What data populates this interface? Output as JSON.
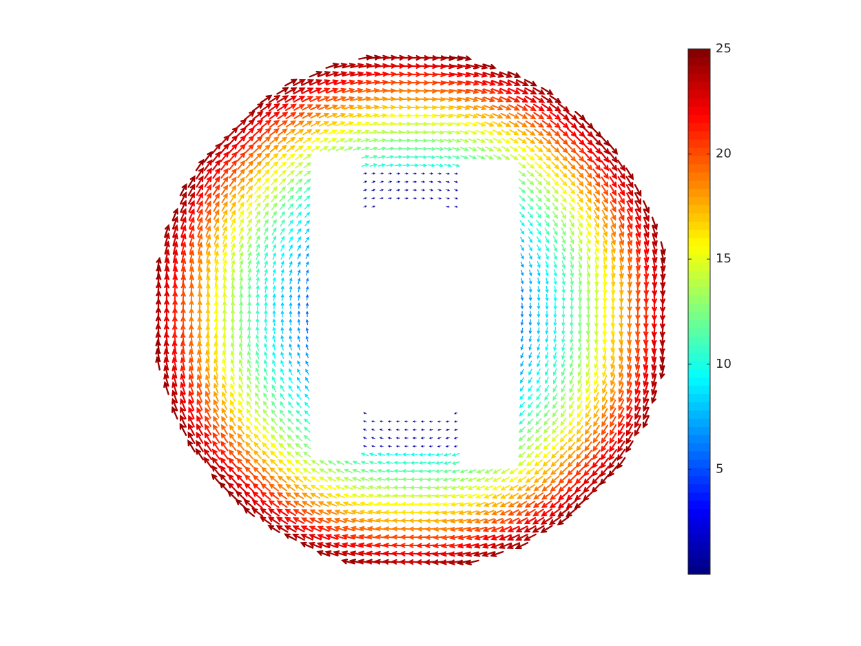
{
  "chart_data": {
    "type": "quiver",
    "colormap": "jet",
    "clim": [
      0,
      25
    ],
    "cticks": [
      5,
      10,
      15,
      20,
      25
    ]
  }
}
